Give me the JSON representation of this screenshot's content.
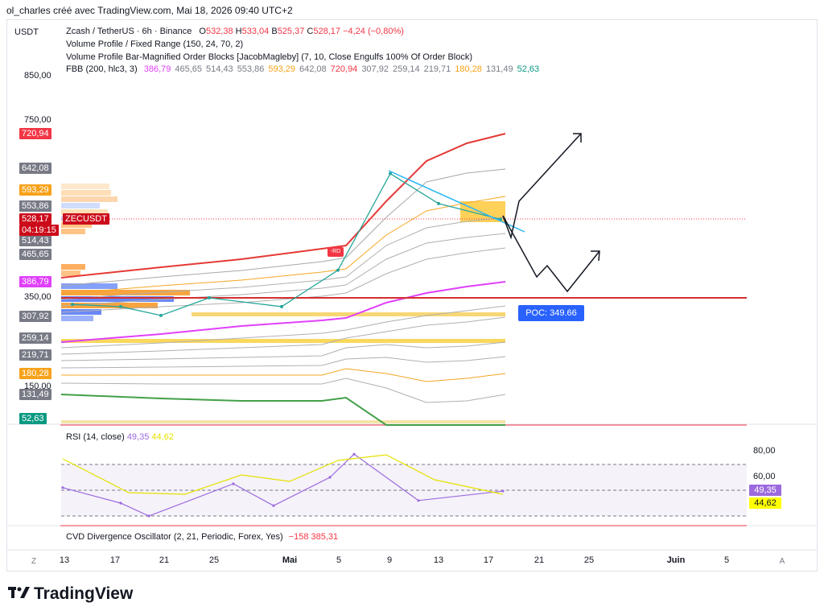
{
  "attribution": "ol_charles créé avec TradingView.com, Mai 18, 2026 09:40 UTC+2",
  "currency": "USDT",
  "legend": {
    "symbol": "Zcash / TetherUS · 6h · Binance",
    "o_label": "O",
    "o": "532,38",
    "h_label": "H",
    "h": "533,04",
    "b_label": "B",
    "b": "525,37",
    "c_label": "C",
    "c": "528,17",
    "change": "−4,24 (−0,80%)",
    "vp_fixed": "Volume Profile / Fixed Range (150, 24, 70, 2)",
    "vp_bar": "Volume Profile Bar-Magnified Order Blocks [JacobMagleby] (7, 10, Close Engulfs 100% Of Order Block)",
    "fbb_name": "FBB (200, hlc3, 3)",
    "fbb_values": [
      {
        "v": "386,79",
        "color": "#e040fb"
      },
      {
        "v": "465,65",
        "color": "#787b86"
      },
      {
        "v": "514,43",
        "color": "#787b86"
      },
      {
        "v": "553,86",
        "color": "#787b86"
      },
      {
        "v": "593,29",
        "color": "#f7a21b"
      },
      {
        "v": "642,08",
        "color": "#787b86"
      },
      {
        "v": "720,94",
        "color": "#f23645"
      },
      {
        "v": "307,92",
        "color": "#787b86"
      },
      {
        "v": "259,14",
        "color": "#787b86"
      },
      {
        "v": "219,71",
        "color": "#787b86"
      },
      {
        "v": "180,28",
        "color": "#f7a21b"
      },
      {
        "v": "131,49",
        "color": "#787b86"
      },
      {
        "v": "52,63",
        "color": "#089981"
      }
    ]
  },
  "price_axis": {
    "labels": [
      {
        "text": "850,00",
        "value": 850
      },
      {
        "text": "750,00",
        "value": 750
      },
      {
        "text": "350,00",
        "value": 350
      },
      {
        "text": "150,00",
        "value": 150
      }
    ]
  },
  "price_tags": [
    {
      "text": "720,94",
      "value": 720.94,
      "bg": "#f23645",
      "fg": "#ffffff"
    },
    {
      "text": "642,08",
      "value": 642.08,
      "bg": "#787b86",
      "fg": "#ffffff"
    },
    {
      "text": "593,29",
      "value": 593.29,
      "bg": "#f7a21b",
      "fg": "#ffffff"
    },
    {
      "text": "553,86",
      "value": 553.86,
      "bg": "#787b86",
      "fg": "#ffffff"
    },
    {
      "text": "514,43",
      "value": 514.43,
      "bg": "#787b86",
      "fg": "#ffffff"
    },
    {
      "text": "465,65",
      "value": 465.65,
      "bg": "#787b86",
      "fg": "#ffffff"
    },
    {
      "text": "386,79",
      "value": 386.79,
      "bg": "#e040fb",
      "fg": "#ffffff"
    },
    {
      "text": "307,92",
      "value": 307.92,
      "bg": "#787b86",
      "fg": "#ffffff"
    },
    {
      "text": "259,14",
      "value": 259.14,
      "bg": "#787b86",
      "fg": "#ffffff"
    },
    {
      "text": "219,71",
      "value": 219.71,
      "bg": "#787b86",
      "fg": "#ffffff"
    },
    {
      "text": "180,28",
      "value": 180.28,
      "bg": "#f7a21b",
      "fg": "#ffffff"
    },
    {
      "text": "131,49",
      "value": 131.49,
      "bg": "#787b86",
      "fg": "#ffffff"
    },
    {
      "text": "52,63",
      "value": 52.63,
      "bg": "#089981",
      "fg": "#ffffff"
    }
  ],
  "current_price": {
    "value": 528.17,
    "text": "528,17",
    "ticker": "ZECUSDT",
    "countdown": "04:19:15"
  },
  "poc_label": "POC: 349.66",
  "rd_label": "-RD",
  "rsi": {
    "name": "RSI (14, close)",
    "value": "49,35",
    "ma": "44,62",
    "axis": [
      {
        "text": "80,00",
        "value": 80
      },
      {
        "text": "60,00",
        "value": 60
      }
    ]
  },
  "cvd": {
    "name": "CVD Divergence Oscillator (2, 21, Periodic, Forex, Yes)",
    "value": "−158 385,31"
  },
  "time_axis": [
    "13",
    "17",
    "21",
    "25",
    "Mai",
    "5",
    "9",
    "13",
    "17",
    "21",
    "25",
    "Juin",
    "5"
  ],
  "nav": {
    "left": "Z",
    "right": "A"
  },
  "brand": "TradingView",
  "chart_data": {
    "type": "line",
    "title": "Zcash / TetherUS · 6h · Binance",
    "ylabel": "USDT",
    "xlabel": "",
    "ylim": [
      0,
      900
    ],
    "x": [
      "13",
      "17",
      "21",
      "25",
      "Mai",
      "5",
      "9",
      "13",
      "17"
    ],
    "series": [
      {
        "values": [
          335,
          330,
          310,
          350,
          330,
          420,
          630,
          560,
          528
        ]
      }
    ],
    "levels": [
      {
        "label": "POC",
        "value": 349.66
      }
    ],
    "rsi_ylim": [
      0,
      100
    ],
    "rsi_levels": [
      70,
      50,
      30
    ],
    "rsi": [
      52,
      40,
      30,
      55,
      38,
      60,
      78,
      42,
      49.35
    ]
  }
}
